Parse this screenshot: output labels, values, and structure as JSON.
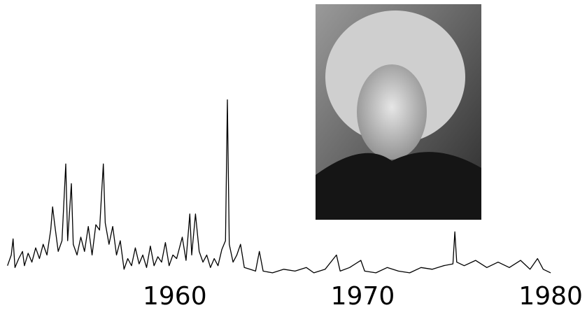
{
  "chart_data": {
    "type": "line",
    "color": "#000000",
    "x": [
      1951.1,
      1951.3,
      1951.4,
      1951.5,
      1951.7,
      1951.9,
      1952.0,
      1952.2,
      1952.4,
      1952.6,
      1952.8,
      1953.0,
      1953.2,
      1953.4,
      1953.5,
      1953.6,
      1953.8,
      1954.0,
      1954.2,
      1954.3,
      1954.5,
      1954.6,
      1954.8,
      1955.0,
      1955.2,
      1955.4,
      1955.6,
      1955.8,
      1956.0,
      1956.1,
      1956.2,
      1956.3,
      1956.5,
      1956.7,
      1956.9,
      1957.1,
      1957.3,
      1957.5,
      1957.7,
      1957.9,
      1958.1,
      1958.3,
      1958.5,
      1958.7,
      1958.9,
      1959.1,
      1959.3,
      1959.5,
      1959.7,
      1959.9,
      1960.1,
      1960.4,
      1960.6,
      1960.8,
      1960.9,
      1961.1,
      1961.3,
      1961.5,
      1961.7,
      1961.9,
      1962.1,
      1962.3,
      1962.5,
      1962.7,
      1962.8,
      1962.9,
      1963.1,
      1963.3,
      1963.5,
      1963.7,
      1964.0,
      1964.3,
      1964.5,
      1964.7,
      1965.2,
      1965.8,
      1966.4,
      1967.0,
      1967.4,
      1968.0,
      1968.6,
      1968.8,
      1969.3,
      1969.9,
      1970.1,
      1970.7,
      1971.3,
      1971.9,
      1972.5,
      1973.1,
      1973.7,
      1974.3,
      1974.8,
      1974.9,
      1975.0,
      1975.4,
      1976.0,
      1976.6,
      1977.2,
      1977.8,
      1978.4,
      1978.9,
      1979.3,
      1979.6,
      1980.0
    ],
    "values": [
      6,
      12,
      21,
      5,
      10,
      14,
      6,
      13,
      8,
      16,
      10,
      18,
      12,
      26,
      39,
      30,
      14,
      20,
      63,
      20,
      52,
      18,
      12,
      22,
      14,
      28,
      12,
      29,
      26,
      45,
      63,
      30,
      18,
      28,
      12,
      20,
      4,
      10,
      6,
      16,
      7,
      12,
      5,
      17,
      6,
      11,
      8,
      19,
      6,
      12,
      10,
      22,
      9,
      35,
      12,
      35,
      14,
      8,
      12,
      5,
      10,
      6,
      15,
      20,
      99,
      18,
      8,
      12,
      18,
      5,
      4,
      3,
      14,
      3,
      2,
      4,
      3,
      5,
      2,
      4,
      12,
      3,
      5,
      9,
      3,
      2,
      5,
      3,
      2,
      5,
      4,
      6,
      7,
      25,
      8,
      6,
      9,
      5,
      8,
      5,
      9,
      4,
      10,
      4,
      2
    ],
    "xlim": [
      1951,
      1981
    ],
    "ylim": [
      0,
      100
    ],
    "xticks": [
      1960,
      1970,
      1980
    ]
  }
}
